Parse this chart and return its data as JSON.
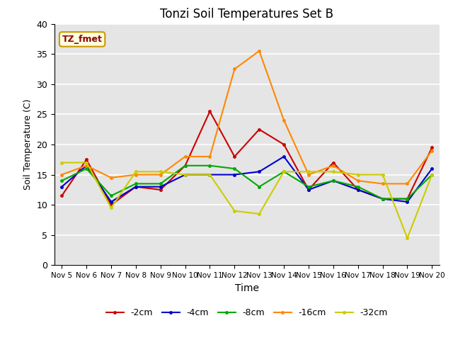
{
  "title": "Tonzi Soil Temperatures Set B",
  "xlabel": "Time",
  "ylabel": "Soil Temperature (C)",
  "annotation": "TZ_fmet",
  "ylim": [
    0,
    40
  ],
  "background_color": "#e5e5e5",
  "xtick_labels": [
    "Nov 5",
    "Nov 6",
    "Nov 7",
    "Nov 8",
    "Nov 9",
    "Nov 10",
    "Nov 11",
    "Nov 12",
    "Nov 13",
    "Nov 14",
    "Nov 15",
    "Nov 16",
    "Nov 17",
    "Nov 18",
    "Nov 19",
    "Nov 20"
  ],
  "series": {
    "-2cm": {
      "color": "#cc0000",
      "x": [
        0,
        1,
        2,
        3,
        4,
        5,
        6,
        7,
        8,
        9,
        10,
        11,
        12,
        13,
        14,
        15
      ],
      "y": [
        11.5,
        17.5,
        10.0,
        13.0,
        12.5,
        16.5,
        25.5,
        18.0,
        22.5,
        20.0,
        12.5,
        17.0,
        12.5,
        11.0,
        11.0,
        19.5
      ]
    },
    "-4cm": {
      "color": "#0000cc",
      "x": [
        0,
        1,
        2,
        3,
        4,
        5,
        6,
        7,
        8,
        9,
        10,
        11,
        12,
        13,
        14,
        15
      ],
      "y": [
        13.0,
        16.5,
        10.5,
        13.0,
        13.0,
        15.0,
        15.0,
        15.0,
        15.5,
        18.0,
        12.5,
        14.0,
        12.5,
        11.0,
        10.5,
        16.0
      ]
    },
    "-8cm": {
      "color": "#00aa00",
      "x": [
        0,
        1,
        2,
        3,
        4,
        5,
        6,
        7,
        8,
        9,
        10,
        11,
        12,
        13,
        14,
        15
      ],
      "y": [
        14.0,
        16.0,
        11.5,
        13.5,
        13.5,
        16.5,
        16.5,
        16.0,
        13.0,
        15.5,
        13.0,
        14.0,
        13.0,
        11.0,
        11.0,
        15.0
      ]
    },
    "-16cm": {
      "color": "#ff8800",
      "x": [
        0,
        1,
        2,
        3,
        4,
        5,
        6,
        7,
        8,
        9,
        10,
        11,
        12,
        13,
        14,
        15
      ],
      "y": [
        15.0,
        16.5,
        14.5,
        15.0,
        15.0,
        18.0,
        18.0,
        32.5,
        35.5,
        24.0,
        15.0,
        16.5,
        14.0,
        13.5,
        13.5,
        19.0
      ]
    },
    "-32cm": {
      "color": "#cccc00",
      "x": [
        0,
        1,
        2,
        3,
        4,
        5,
        6,
        7,
        8,
        9,
        10,
        11,
        12,
        13,
        14,
        15
      ],
      "y": [
        17.0,
        17.0,
        9.5,
        15.5,
        15.5,
        15.0,
        15.0,
        9.0,
        8.5,
        15.5,
        15.5,
        15.5,
        15.0,
        15.0,
        4.5,
        15.0
      ]
    }
  }
}
